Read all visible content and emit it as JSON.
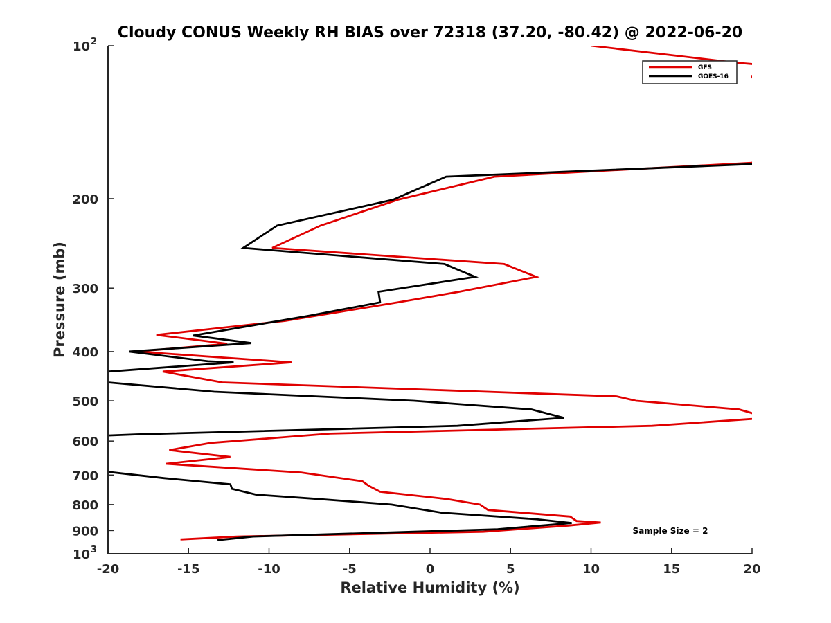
{
  "chart_data": {
    "type": "line",
    "title": "Cloudy CONUS Weekly RH BIAS over 72318 (37.20, -80.42) @ 2022-06-20",
    "xlabel": "Relative Humidity (%)",
    "ylabel": "Pressure (mb)",
    "xlim": [
      -20,
      20
    ],
    "ylim": [
      100,
      1000
    ],
    "yscale": "log",
    "yreversed": true,
    "xticks": [
      "-20",
      "-15",
      "-10",
      "-5",
      "0",
      "5",
      "10",
      "15",
      "20"
    ],
    "xtick_values": [
      -20,
      -15,
      -10,
      -5,
      0,
      5,
      10,
      15,
      20
    ],
    "yticks": [
      {
        "value": 100,
        "label": "10",
        "exp": "2"
      },
      {
        "value": 200,
        "label": "200",
        "exp": ""
      },
      {
        "value": 300,
        "label": "300",
        "exp": ""
      },
      {
        "value": 400,
        "label": "400",
        "exp": ""
      },
      {
        "value": 500,
        "label": "500",
        "exp": ""
      },
      {
        "value": 600,
        "label": "600",
        "exp": ""
      },
      {
        "value": 700,
        "label": "700",
        "exp": ""
      },
      {
        "value": 800,
        "label": "800",
        "exp": ""
      },
      {
        "value": 900,
        "label": "900",
        "exp": ""
      },
      {
        "value": 1000,
        "label": "10",
        "exp": "3"
      }
    ],
    "legend_position": "top-right",
    "series": [
      {
        "name": "GFS",
        "color": "#e00000",
        "points": [
          [
            10.0,
            100
          ],
          [
            19.0,
            108
          ],
          [
            22.0,
            110
          ],
          [
            20.0,
            115
          ],
          [
            22.0,
            150
          ],
          [
            20.0,
            170
          ],
          [
            4.0,
            181
          ],
          [
            -2.0,
            201
          ],
          [
            -6.8,
            226
          ],
          [
            -9.8,
            250
          ],
          [
            4.6,
            269
          ],
          [
            6.6,
            285
          ],
          [
            1.8,
            305
          ],
          [
            -2.0,
            320
          ],
          [
            -9.0,
            348
          ],
          [
            -17.0,
            371
          ],
          [
            -12.6,
            386
          ],
          [
            -18.2,
            400
          ],
          [
            -8.6,
            420
          ],
          [
            -16.6,
            438
          ],
          [
            -12.9,
            460
          ],
          [
            11.6,
            490
          ],
          [
            12.8,
            500
          ],
          [
            19.2,
            520
          ],
          [
            21.0,
            540
          ],
          [
            13.8,
            560
          ],
          [
            -6.2,
            580
          ],
          [
            -13.6,
            605
          ],
          [
            -16.2,
            625
          ],
          [
            -12.4,
            645
          ],
          [
            -16.4,
            665
          ],
          [
            -8.0,
            692
          ],
          [
            -4.2,
            720
          ],
          [
            -3.8,
            735
          ],
          [
            -3.1,
            755
          ],
          [
            1.0,
            780
          ],
          [
            3.1,
            800
          ],
          [
            3.6,
            820
          ],
          [
            8.7,
            845
          ],
          [
            9.1,
            862
          ],
          [
            10.6,
            868
          ],
          [
            8.6,
            880
          ],
          [
            3.3,
            905
          ],
          [
            -12.0,
            925
          ],
          [
            -15.5,
            937
          ]
        ]
      },
      {
        "name": "GOES-16",
        "color": "#000000",
        "points": [
          [
            22.0,
            170
          ],
          [
            1.0,
            181
          ],
          [
            -2.3,
            201
          ],
          [
            -9.5,
            226
          ],
          [
            -11.6,
            250
          ],
          [
            0.9,
            269
          ],
          [
            2.8,
            285
          ],
          [
            -3.2,
            305
          ],
          [
            -3.1,
            320
          ],
          [
            -7.5,
            340
          ],
          [
            -14.7,
            372
          ],
          [
            -11.1,
            385
          ],
          [
            -18.7,
            400
          ],
          [
            -13.8,
            418
          ],
          [
            -12.2,
            420
          ],
          [
            -20.0,
            438
          ],
          [
            -21.0,
            445
          ],
          [
            -20.0,
            460
          ],
          [
            -13.4,
            480
          ],
          [
            -1.0,
            500
          ],
          [
            6.3,
            520
          ],
          [
            8.3,
            540
          ],
          [
            1.7,
            560
          ],
          [
            -18.2,
            582
          ],
          [
            -20.0,
            585
          ],
          [
            -21.0,
            590
          ],
          [
            -20.0,
            690
          ],
          [
            -16.5,
            710
          ],
          [
            -12.4,
            730
          ],
          [
            -12.3,
            745
          ],
          [
            -10.8,
            765
          ],
          [
            -7.0,
            780
          ],
          [
            -2.4,
            800
          ],
          [
            0.7,
            830
          ],
          [
            6.6,
            855
          ],
          [
            8.8,
            870
          ],
          [
            4.2,
            895
          ],
          [
            -1.0,
            905
          ],
          [
            -11.0,
            925
          ],
          [
            -13.2,
            940
          ]
        ]
      }
    ],
    "annotation": "Sample Size = 2"
  }
}
